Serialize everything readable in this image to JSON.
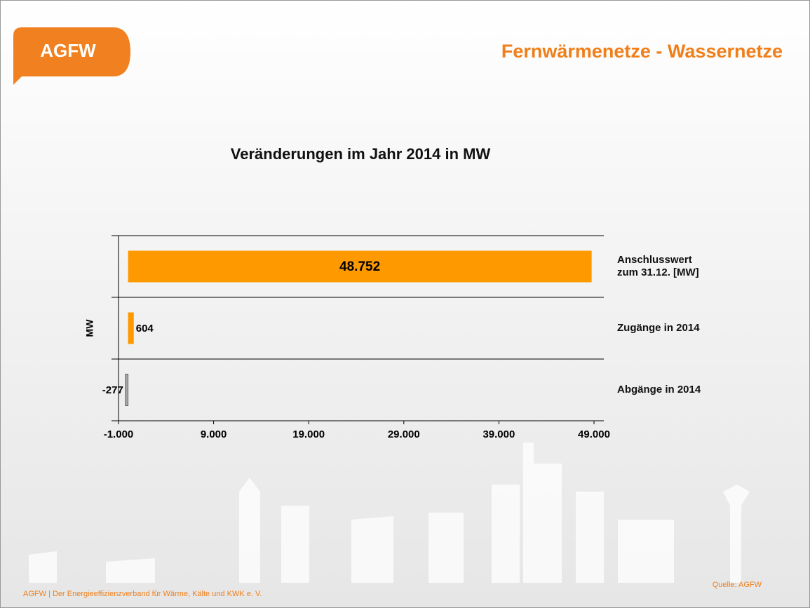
{
  "logo": "AGFW",
  "header": "Fernwärmenetze - Wassernetze",
  "footer": "AGFW | Der Energieeffizienzverband für Wärme, Kälte und KWK e. V.",
  "source": "Quelle: AGFW",
  "chart_data": {
    "type": "bar",
    "orientation": "horizontal",
    "title": "Veränderungen im Jahr 2014 in MW",
    "axis_label": "MW",
    "categories": [
      "Anschlusswert zum 31.12. [MW]",
      "Zugänge in 2014",
      "Abgänge in 2014"
    ],
    "values": [
      48752,
      604,
      -277
    ],
    "value_labels": [
      "48.752",
      "604",
      "-277"
    ],
    "colors": [
      "#ff9900",
      "#ff9900",
      "#a6a6a6"
    ],
    "xlim": [
      -1000,
      49000
    ],
    "xticks": [
      {
        "value": -1000,
        "label": "-1.000"
      },
      {
        "value": 9000,
        "label": "9.000"
      },
      {
        "value": 19000,
        "label": "19.000"
      },
      {
        "value": 29000,
        "label": "29.000"
      },
      {
        "value": 39000,
        "label": "39.000"
      },
      {
        "value": 49000,
        "label": "49.000"
      }
    ]
  }
}
